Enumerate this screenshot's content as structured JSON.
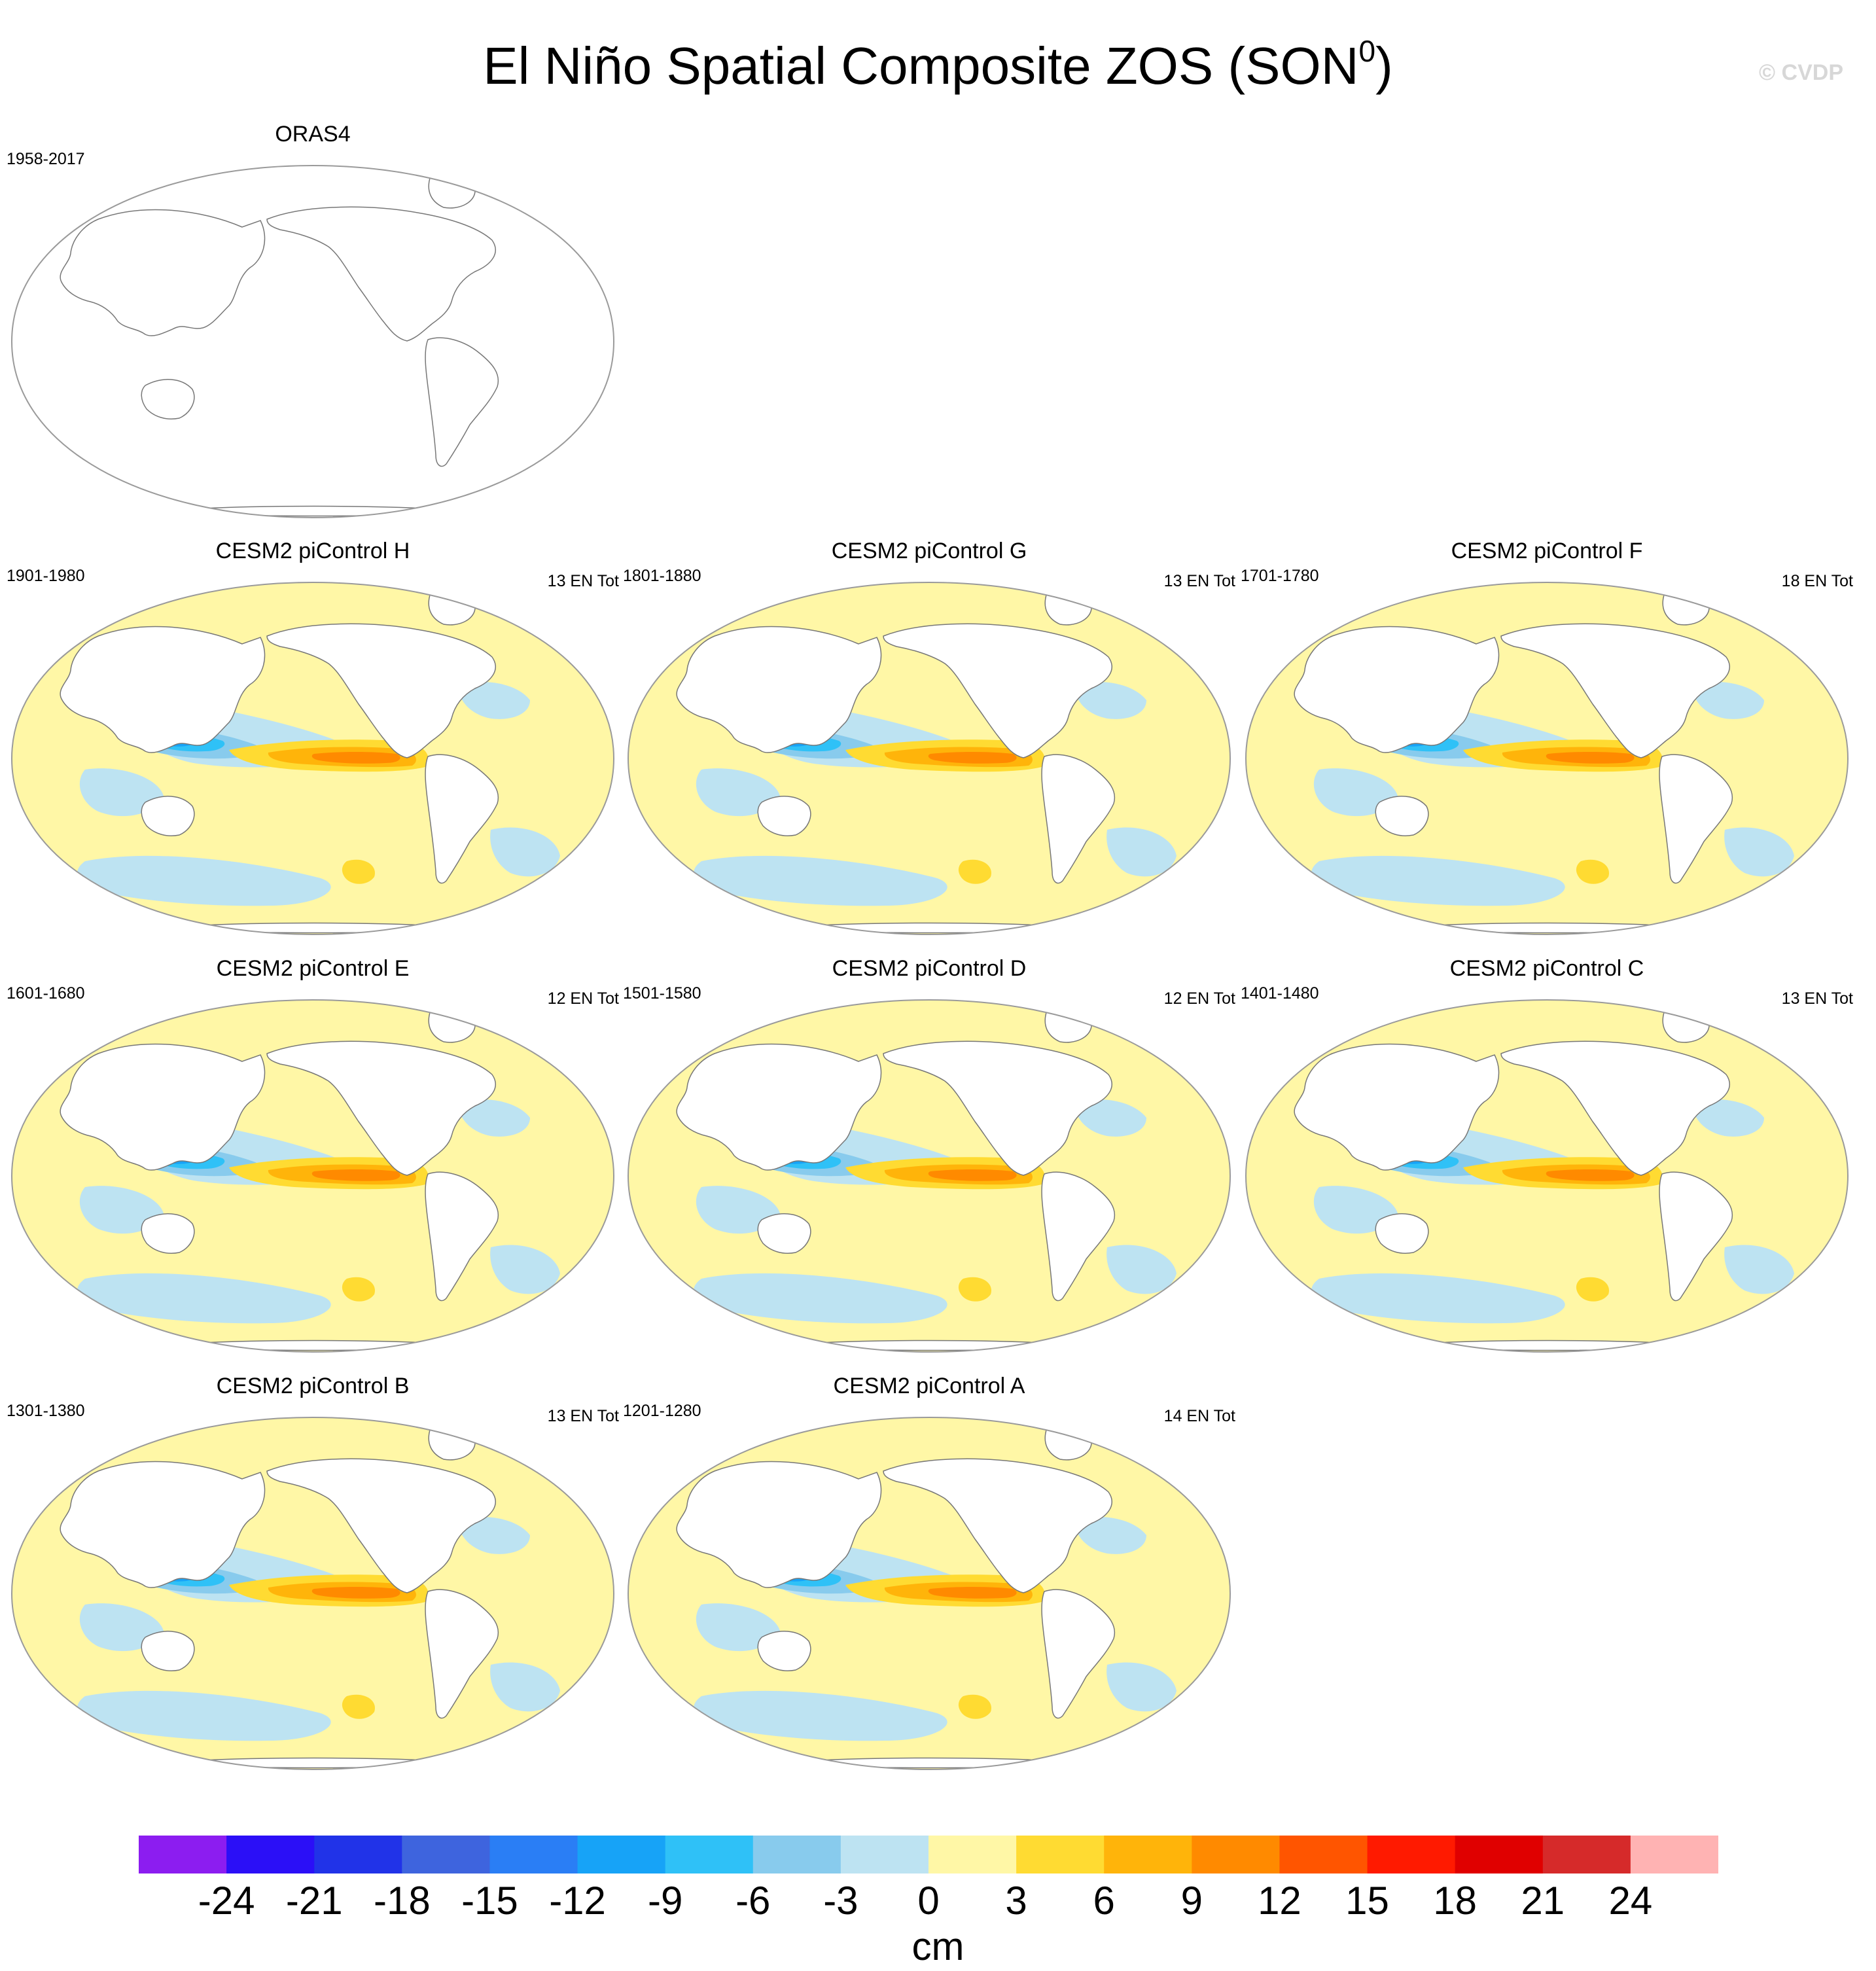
{
  "title": {
    "main": "El Niño Spatial Composite ZOS (SON",
    "sup": "0",
    "close": ")"
  },
  "copyright": "© CVDP",
  "panels": [
    {
      "title": "ORAS4",
      "years": "1958-2017",
      "count": "",
      "has_data": false
    },
    {
      "title": "CESM2 piControl H",
      "years": "1901-1980",
      "count": "13 EN Tot",
      "has_data": true
    },
    {
      "title": "CESM2 piControl G",
      "years": "1801-1880",
      "count": "13 EN Tot",
      "has_data": true
    },
    {
      "title": "CESM2 piControl F",
      "years": "1701-1780",
      "count": "18 EN Tot",
      "has_data": true
    },
    {
      "title": "CESM2 piControl E",
      "years": "1601-1680",
      "count": "12 EN Tot",
      "has_data": true
    },
    {
      "title": "CESM2 piControl D",
      "years": "1501-1580",
      "count": "12 EN Tot",
      "has_data": true
    },
    {
      "title": "CESM2 piControl C",
      "years": "1401-1480",
      "count": "13 EN Tot",
      "has_data": true
    },
    {
      "title": "CESM2 piControl B",
      "years": "1301-1380",
      "count": "13 EN Tot",
      "has_data": true
    },
    {
      "title": "CESM2 piControl A",
      "years": "1201-1280",
      "count": "14 EN Tot",
      "has_data": true
    }
  ],
  "colorbar": {
    "colors": [
      "#8c1df0",
      "#2b0ff7",
      "#2133e8",
      "#3e64de",
      "#2a7ef5",
      "#17a3f7",
      "#2fc1f7",
      "#88cbed",
      "#bde3f2",
      "#fff7a6",
      "#ffdb32",
      "#ffb40a",
      "#ff8a00",
      "#ff5500",
      "#ff1a00",
      "#e00000",
      "#d62a2a",
      "#ffb3b3"
    ],
    "labels": [
      "-24",
      "-21",
      "-18",
      "-15",
      "-12",
      "-9",
      "-6",
      "-3",
      "0",
      "3",
      "6",
      "9",
      "12",
      "15",
      "18",
      "21",
      "24"
    ],
    "units": "cm"
  }
}
